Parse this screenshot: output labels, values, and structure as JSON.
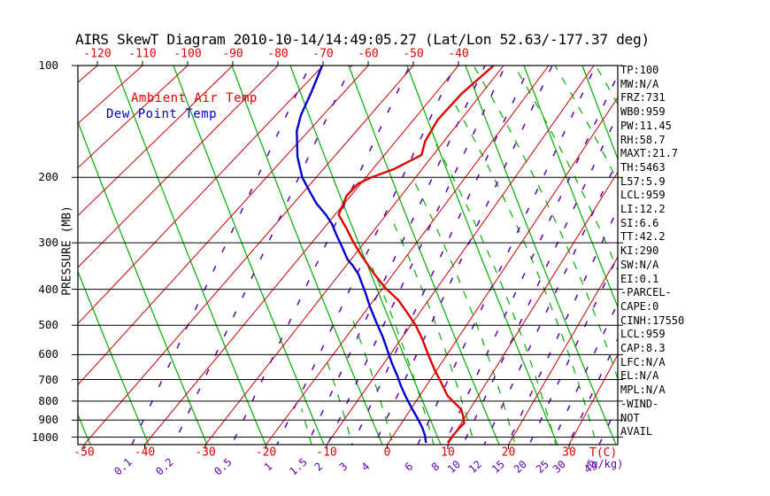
{
  "title": "AIRS SkewT Diagram 2010-10-14/14:49:05.27 (Lat/Lon 52.63/-177.37 deg)",
  "legend": {
    "temp": "Ambient Air Temp",
    "dewpoint": "Dew Point Temp"
  },
  "colors": {
    "temp_curve": "#dd0000",
    "dewpoint_curve": "#0000cc",
    "isotherms": "#cc0000",
    "dry_adiabats": "#00b000",
    "moist_adiabats": "#00b000",
    "mixing_ratio": "#5f00b0",
    "grid": "#000000"
  },
  "y_axis": {
    "label": "PRESSURE (MB)",
    "ticks": [
      100,
      200,
      300,
      400,
      500,
      600,
      700,
      800,
      900,
      1000
    ]
  },
  "x_axis_top": {
    "ticks": [
      -120,
      -110,
      -100,
      -90,
      -80,
      -70,
      -60,
      -50,
      -40
    ]
  },
  "x_axis_bottom": {
    "label": "T(C)",
    "ticks": [
      -50,
      -40,
      -30,
      -20,
      -10,
      0,
      10,
      20,
      30
    ]
  },
  "mixing_axis": {
    "label": "(g/kg)",
    "ticks": [
      "0.1",
      "0.2",
      "0.5",
      "1",
      "1.5",
      "2",
      "3",
      "4",
      "6",
      "8",
      "10",
      "12",
      "15",
      "20",
      "25",
      "30",
      "40"
    ]
  },
  "stats_panel": [
    "TP:100",
    "MW:N/A",
    "FRZ:731",
    "WB0:959",
    "PW:11.45",
    "RH:58.7",
    "MAXT:21.7",
    "TH:5463",
    "L57:5.9",
    "LCL:959",
    "LI:12.2",
    "SI:6.6",
    "TT:42.2",
    "KI:290",
    "SW:N/A",
    "EI:0.1",
    "-PARCEL-",
    "CAPE:0",
    "CINH:17550",
    "LCL:959",
    "CAP:8.3",
    "LFC:N/A",
    "EL:N/A",
    "MPL:N/A",
    "-WIND-",
    "NOT",
    "AVAIL"
  ],
  "chart_data": {
    "type": "line",
    "title": "AIRS SkewT Diagram 2010-10-14/14:49:05.27 (Lat/Lon 52.63/-177.37 deg)",
    "xlabel": "T(C)",
    "ylabel": "PRESSURE (MB)",
    "y_scale": "log",
    "y_range": [
      100,
      1050
    ],
    "x_bottom_range": [
      -50,
      30
    ],
    "x_top_range": [
      -120,
      -40
    ],
    "grid": true,
    "legend_position": "top-left-inside",
    "series": [
      {
        "name": "Ambient Air Temp",
        "color": "#dd0000",
        "units": {
          "x": "C",
          "y": "mb"
        },
        "points": [
          [
            100,
            -32.2
          ],
          [
            119,
            -34.3
          ],
          [
            140,
            -34.9
          ],
          [
            160,
            -33.9
          ],
          [
            174,
            -32.4
          ],
          [
            190,
            -35.7
          ],
          [
            200,
            -38.9
          ],
          [
            208,
            -40.5
          ],
          [
            224,
            -40.8
          ],
          [
            252,
            -39.3
          ],
          [
            275,
            -35.5
          ],
          [
            300,
            -32.0
          ],
          [
            329,
            -28.0
          ],
          [
            361,
            -23.9
          ],
          [
            397,
            -19.5
          ],
          [
            428,
            -15.5
          ],
          [
            470,
            -11.6
          ],
          [
            502,
            -9.0
          ],
          [
            545,
            -6.2
          ],
          [
            592,
            -3.7
          ],
          [
            657,
            -0.5
          ],
          [
            718,
            2.4
          ],
          [
            775,
            4.8
          ],
          [
            810,
            6.8
          ],
          [
            841,
            8.5
          ],
          [
            879,
            9.6
          ],
          [
            918,
            10.5
          ],
          [
            944,
            10.2
          ],
          [
            992,
            9.9
          ],
          [
            1036,
            9.8
          ]
        ]
      },
      {
        "name": "Dew Point Temp",
        "color": "#0000cc",
        "units": {
          "x": "C",
          "y": "mb"
        },
        "points": [
          [
            100,
            -70.2
          ],
          [
            117,
            -67.2
          ],
          [
            136,
            -64.7
          ],
          [
            150,
            -62.5
          ],
          [
            176,
            -57.5
          ],
          [
            200,
            -52.8
          ],
          [
            219,
            -48.7
          ],
          [
            235,
            -45.5
          ],
          [
            253,
            -41.6
          ],
          [
            267,
            -39.1
          ],
          [
            285,
            -36.6
          ],
          [
            310,
            -33.3
          ],
          [
            333,
            -30.6
          ],
          [
            346,
            -28.7
          ],
          [
            365,
            -26.4
          ],
          [
            408,
            -22.6
          ],
          [
            443,
            -20.0
          ],
          [
            489,
            -16.7
          ],
          [
            536,
            -13.6
          ],
          [
            576,
            -11.4
          ],
          [
            633,
            -8.6
          ],
          [
            683,
            -6.2
          ],
          [
            729,
            -4.3
          ],
          [
            775,
            -2.4
          ],
          [
            832,
            -0.1
          ],
          [
            894,
            2.3
          ],
          [
            944,
            4.0
          ],
          [
            992,
            5.3
          ],
          [
            1036,
            6.2
          ]
        ]
      }
    ]
  }
}
